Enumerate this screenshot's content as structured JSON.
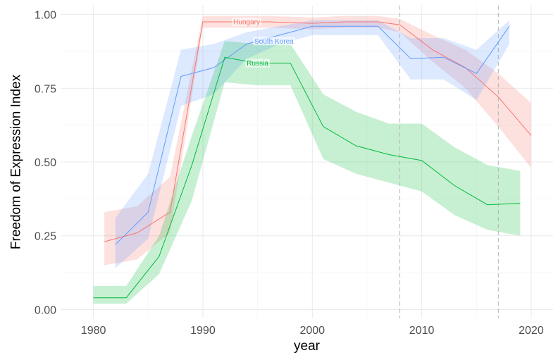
{
  "chart_data": {
    "type": "line",
    "title": "",
    "xlabel": "year",
    "ylabel": "Freedom of Expression Index",
    "xlim": [
      1977,
      2022
    ],
    "ylim": [
      -0.03,
      1.03
    ],
    "x_ticks": [
      1980,
      1990,
      2000,
      2010,
      2020
    ],
    "x_tick_labels": [
      "1980",
      "1990",
      "2000",
      "2010",
      "2020"
    ],
    "y_ticks": [
      0,
      0.25,
      0.5,
      0.75,
      1
    ],
    "y_tick_labels": [
      "0.00",
      "0.25",
      "0.50",
      "0.75",
      "1.00"
    ],
    "grid": true,
    "legend": "none",
    "vlines": [
      2008,
      2017
    ],
    "series": [
      {
        "name": "Hungary",
        "color": "#F8766D",
        "label_at": [
          1994,
          0.975
        ],
        "x": [
          1981,
          1984,
          1987,
          1990,
          1993,
          1996,
          2000,
          2003,
          2006,
          2008,
          2011,
          2014,
          2017,
          2020
        ],
        "y": [
          0.23,
          0.26,
          0.33,
          0.975,
          0.975,
          0.975,
          0.97,
          0.975,
          0.975,
          0.965,
          0.88,
          0.82,
          0.72,
          0.59
        ],
        "lower": [
          0.15,
          0.17,
          0.26,
          0.955,
          0.955,
          0.955,
          0.95,
          0.955,
          0.955,
          0.94,
          0.84,
          0.75,
          0.62,
          0.48
        ],
        "upper": [
          0.33,
          0.35,
          0.45,
          0.995,
          0.995,
          0.995,
          0.99,
          0.995,
          0.995,
          0.985,
          0.93,
          0.88,
          0.8,
          0.7
        ]
      },
      {
        "name": "South Korea",
        "color": "#619CFF",
        "label_at": [
          1996.5,
          0.91
        ],
        "x": [
          1982,
          1985,
          1988,
          1991,
          1994,
          1997,
          2000,
          2003,
          2006,
          2009,
          2012,
          2015,
          2018
        ],
        "y": [
          0.22,
          0.33,
          0.79,
          0.82,
          0.9,
          0.93,
          0.96,
          0.96,
          0.96,
          0.85,
          0.855,
          0.8,
          0.96
        ],
        "lower": [
          0.14,
          0.24,
          0.69,
          0.73,
          0.85,
          0.9,
          0.93,
          0.93,
          0.93,
          0.78,
          0.78,
          0.71,
          0.9
        ],
        "upper": [
          0.31,
          0.46,
          0.88,
          0.9,
          0.94,
          0.96,
          0.98,
          0.98,
          0.98,
          0.92,
          0.92,
          0.88,
          0.98
        ]
      },
      {
        "name": "Russia",
        "color": "#00BA38",
        "label_at": [
          1995,
          0.835
        ],
        "x": [
          1980,
          1983,
          1986,
          1989,
          1992,
          1995,
          1998,
          2001,
          2004,
          2007,
          2010,
          2013,
          2016,
          2019
        ],
        "y": [
          0.04,
          0.04,
          0.18,
          0.49,
          0.855,
          0.835,
          0.835,
          0.62,
          0.555,
          0.525,
          0.505,
          0.42,
          0.355,
          0.36
        ],
        "lower": [
          0.02,
          0.02,
          0.12,
          0.37,
          0.77,
          0.76,
          0.76,
          0.51,
          0.46,
          0.43,
          0.4,
          0.32,
          0.27,
          0.25
        ],
        "upper": [
          0.08,
          0.08,
          0.25,
          0.59,
          0.91,
          0.9,
          0.9,
          0.73,
          0.67,
          0.63,
          0.63,
          0.55,
          0.49,
          0.47
        ]
      }
    ]
  }
}
